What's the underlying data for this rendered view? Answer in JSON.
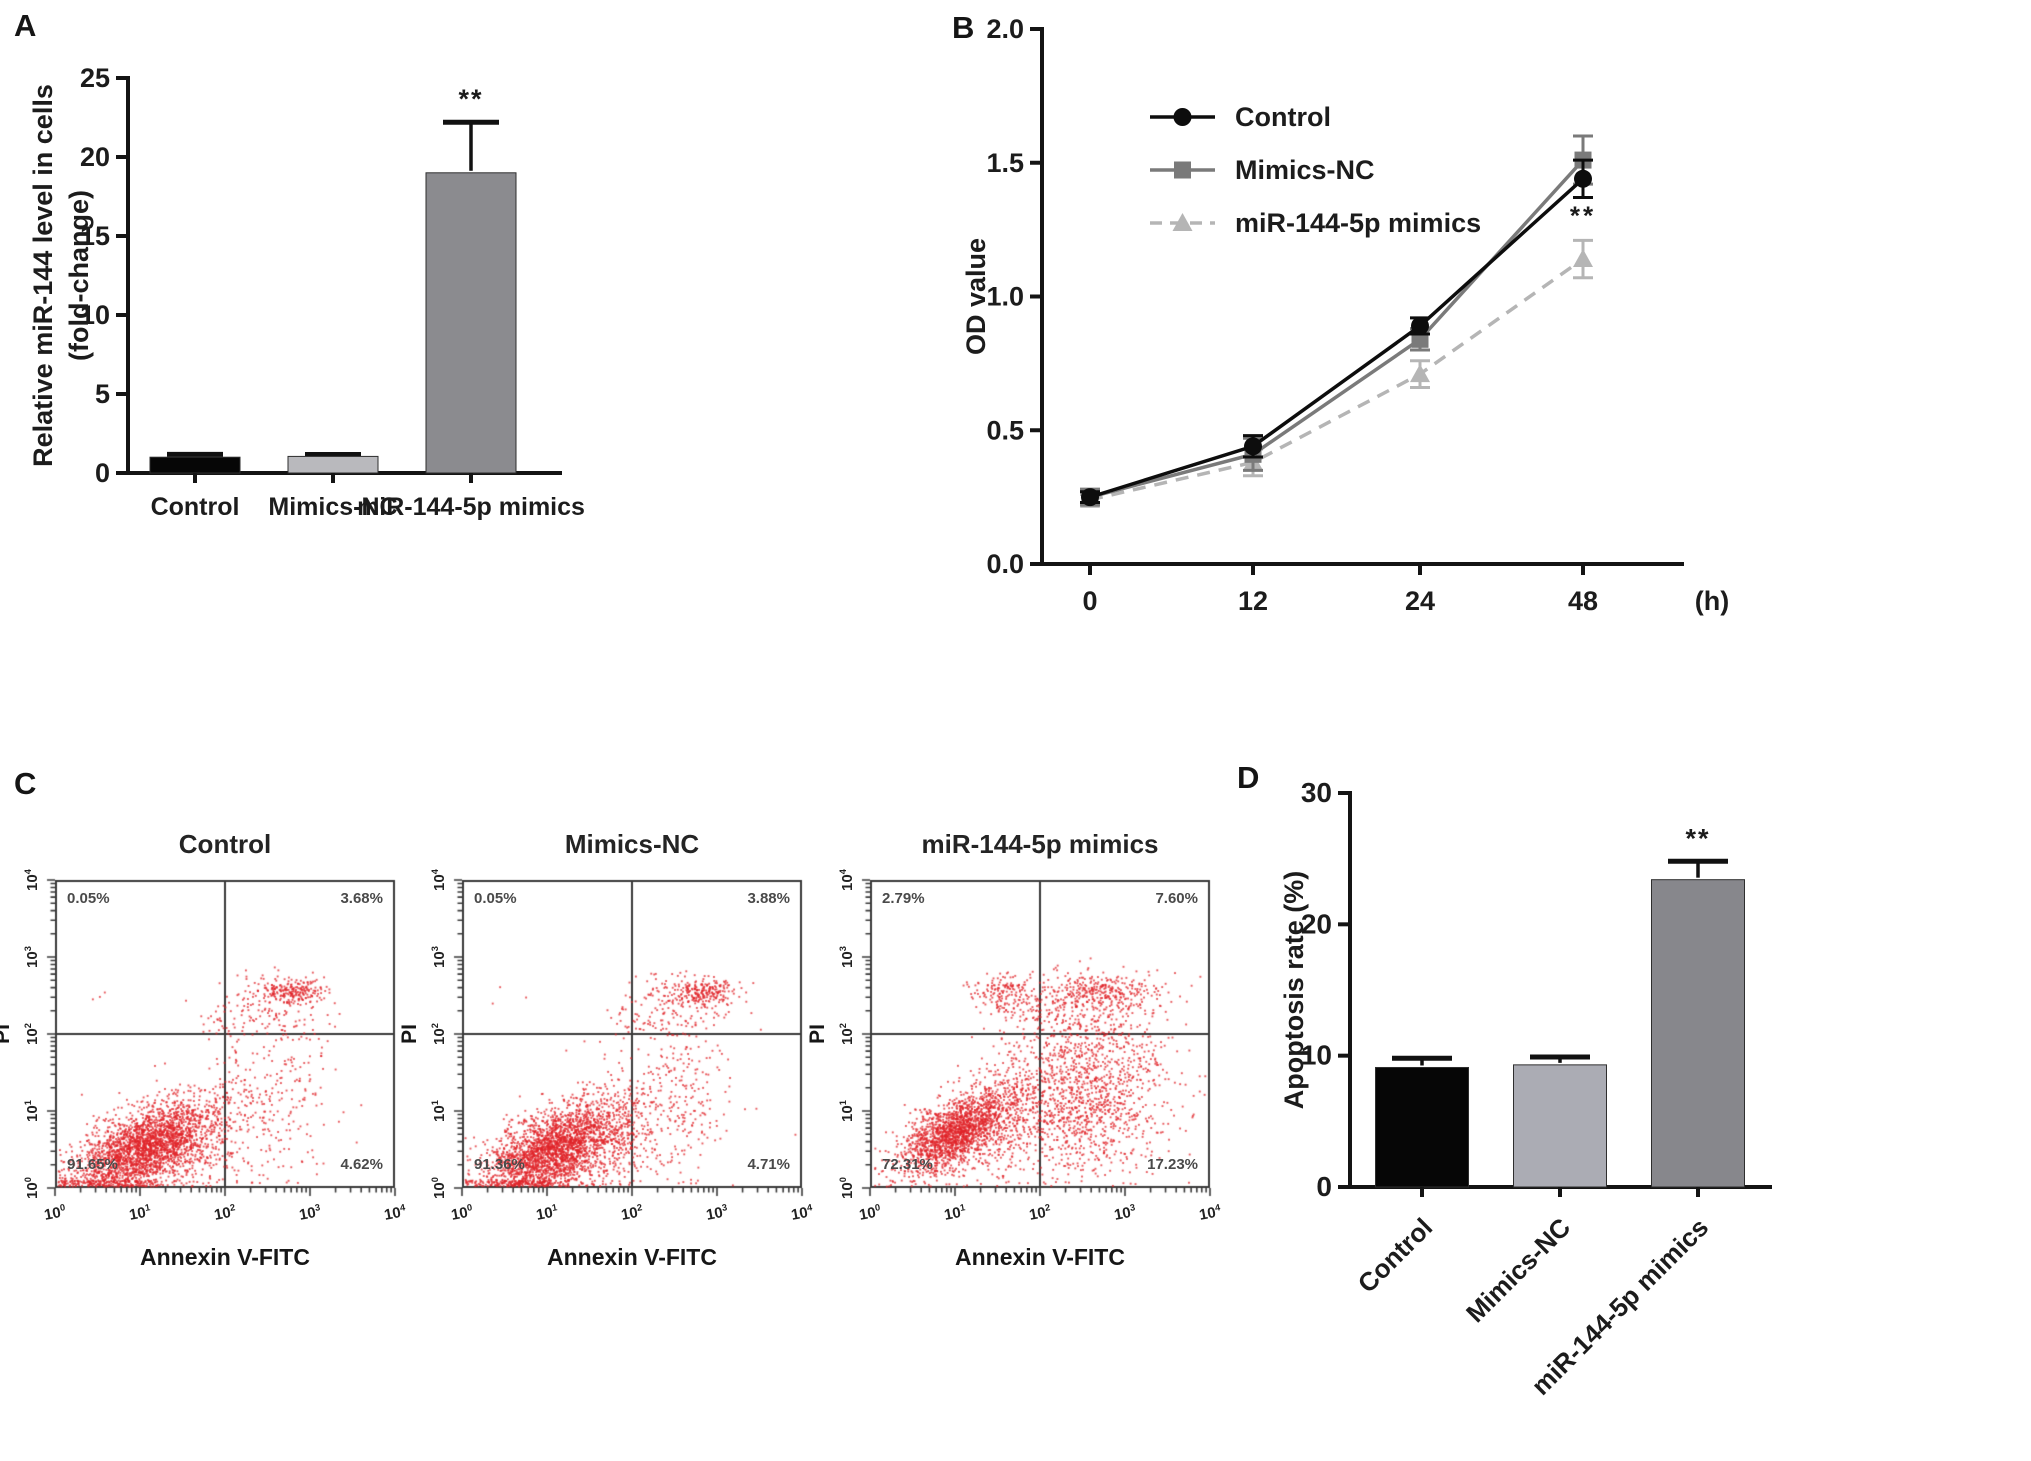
{
  "panels": {
    "a": "A",
    "b": "B",
    "c": "C",
    "d": "D"
  },
  "chart_data": [
    {
      "id": "A",
      "type": "bar",
      "ylabel_lines": [
        "Relative miR-144 level in cells",
        "(fold-change)"
      ],
      "ylim": [
        0,
        25
      ],
      "yticks": [
        0,
        5,
        10,
        15,
        20,
        25
      ],
      "categories": [
        "Control",
        "Mimics-NC",
        "miR-144-5p mimics"
      ],
      "values": [
        1.0,
        1.05,
        19.0
      ],
      "errors": [
        0.18,
        0.12,
        3.2
      ],
      "bar_colors": [
        "#060606",
        "#b9b9bd",
        "#8b8b8f"
      ],
      "error_color": "#111111",
      "significance": {
        "index": 2,
        "label": "**"
      }
    },
    {
      "id": "B",
      "type": "line",
      "ylabel": "OD value",
      "ylim": [
        0,
        2
      ],
      "yticks": [
        0,
        0.5,
        1,
        1.5,
        2
      ],
      "ytick_labels": [
        "0.0",
        "0.5",
        "1.0",
        "1.5",
        "2.0"
      ],
      "x_labels": [
        "0",
        "12",
        "24",
        "48"
      ],
      "x_unit": "(h)",
      "legend_position": "top-left-inside",
      "series": [
        {
          "name": "Control",
          "color": "#0d0d0d",
          "marker": "circle",
          "dash": false,
          "values": [
            0.25,
            0.44,
            0.89,
            1.44
          ],
          "errors": [
            0.02,
            0.04,
            0.03,
            0.07
          ]
        },
        {
          "name": "Mimics-NC",
          "color": "#7a7a7a",
          "marker": "square",
          "dash": false,
          "values": [
            0.25,
            0.41,
            0.84,
            1.51
          ],
          "errors": [
            0.03,
            0.06,
            0.04,
            0.09
          ]
        },
        {
          "name": "miR-144-5p mimics",
          "color": "#b5b5b5",
          "marker": "triangle",
          "dash": true,
          "values": [
            0.24,
            0.38,
            0.71,
            1.14
          ],
          "errors": [
            0.02,
            0.05,
            0.05,
            0.07
          ]
        }
      ],
      "significance": {
        "series": 2,
        "point": 3,
        "label": "**"
      }
    },
    {
      "id": "C",
      "type": "scatter-flow",
      "xlabel": "Annexin V-FITC",
      "ylabel": "PI",
      "log_base": "10",
      "decades": [
        0,
        1,
        2,
        3,
        4
      ],
      "gate_value": 2,
      "dot_color": "#e0242a",
      "plots": [
        {
          "title": "Control",
          "seed": 101,
          "quadrants": {
            "ul": "0.05%",
            "ur": "3.68%",
            "ll": "91.65%",
            "lr": "4.62%"
          },
          "clusters": [
            [
              2500,
              1.02,
              0.52,
              0.4,
              0.26,
              0.45
            ],
            [
              220,
              1.7,
              0.55,
              0.28,
              0.3,
              0.4
            ],
            [
              260,
              2.25,
              0.95,
              0.42,
              0.5,
              0
            ],
            [
              90,
              2.6,
              1.7,
              0.3,
              0.45,
              0
            ],
            [
              225,
              2.78,
              2.56,
              0.2,
              0.09,
              0
            ],
            [
              80,
              2.45,
              2.4,
              0.3,
              0.25,
              0
            ],
            [
              30,
              2.05,
              2.2,
              0.18,
              0.15,
              0
            ],
            [
              3,
              0.5,
              2.5,
              0.2,
              0.1,
              0
            ]
          ]
        },
        {
          "title": "Mimics-NC",
          "seed": 202,
          "quadrants": {
            "ul": "0.05%",
            "ur": "3.88%",
            "ll": "91.36%",
            "lr": "4.71%"
          },
          "clusters": [
            [
              2500,
              1.05,
              0.5,
              0.4,
              0.26,
              0.45
            ],
            [
              230,
              1.72,
              0.55,
              0.28,
              0.3,
              0.4
            ],
            [
              270,
              2.3,
              0.95,
              0.42,
              0.5,
              0
            ],
            [
              95,
              2.62,
              1.7,
              0.3,
              0.45,
              0
            ],
            [
              230,
              2.8,
              2.55,
              0.2,
              0.09,
              0
            ],
            [
              85,
              2.45,
              2.4,
              0.3,
              0.25,
              0
            ],
            [
              30,
              2.05,
              2.2,
              0.18,
              0.15,
              0
            ],
            [
              3,
              0.55,
              2.45,
              0.2,
              0.1,
              0
            ]
          ]
        },
        {
          "title": "miR-144-5p mimics",
          "seed": 303,
          "quadrants": {
            "ul": "2.79%",
            "ur": "7.60%",
            "ll": "72.31%",
            "lr": "17.23%"
          },
          "clusters": [
            [
              1750,
              0.98,
              0.72,
              0.32,
              0.22,
              0.5
            ],
            [
              420,
              1.6,
              1.0,
              0.3,
              0.4,
              0.3
            ],
            [
              950,
              2.55,
              1.05,
              0.48,
              0.45,
              0
            ],
            [
              230,
              2.6,
              1.75,
              0.45,
              0.3,
              0
            ],
            [
              300,
              2.72,
              2.58,
              0.33,
              0.12,
              0
            ],
            [
              200,
              2.45,
              2.25,
              0.4,
              0.25,
              0
            ],
            [
              150,
              1.55,
              2.55,
              0.2,
              0.12,
              0
            ],
            [
              60,
              1.9,
              2.4,
              0.3,
              0.2,
              0
            ]
          ]
        }
      ]
    },
    {
      "id": "D",
      "type": "bar",
      "ylabel": "Apoptosis rate (%)",
      "ylim": [
        0,
        30
      ],
      "yticks": [
        0,
        10,
        20,
        30
      ],
      "categories": [
        "Control",
        "Mimics-NC",
        "miR-144-5p mimics"
      ],
      "values": [
        9.1,
        9.3,
        23.4
      ],
      "errors": [
        0.7,
        0.6,
        1.4
      ],
      "bar_colors": [
        "#060606",
        "#abacb4",
        "#87878c"
      ],
      "error_color": "#111111",
      "rotate_labels": 45,
      "significance": {
        "index": 2,
        "label": "**"
      }
    }
  ]
}
